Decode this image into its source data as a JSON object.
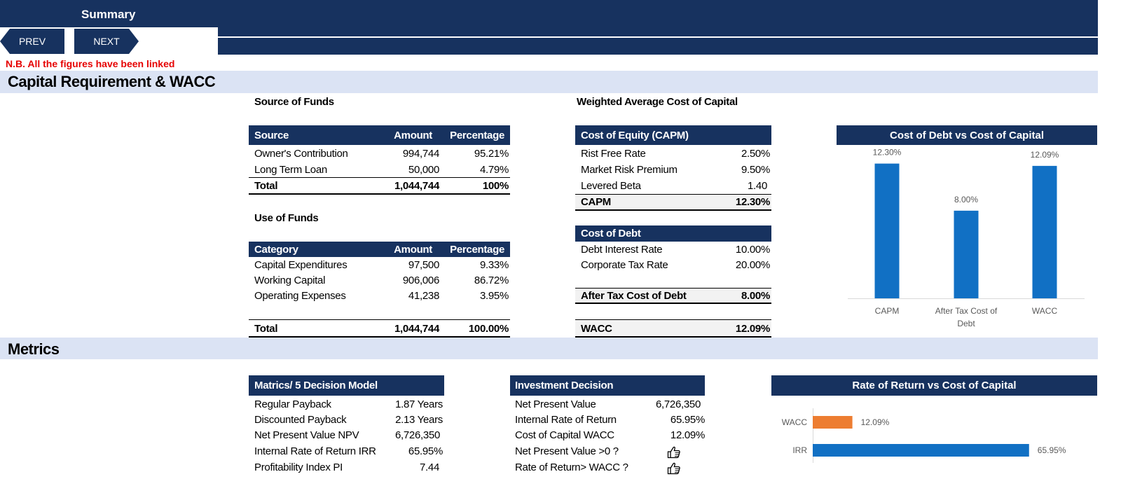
{
  "header": {
    "title": "Summary",
    "prev_label": "PREV",
    "next_label": "NEXT"
  },
  "note": "N.B. All the figures have been linked",
  "sections": {
    "capital": "Capital Requirement & WACC",
    "metrics": "Metrics"
  },
  "source_of_funds": {
    "title": "Source of Funds",
    "headers": [
      "Source",
      "Amount",
      "Percentage"
    ],
    "rows": [
      [
        "Owner's Contribution",
        "994,744",
        "95.21%"
      ],
      [
        "Long Term Loan",
        "50,000",
        "4.79%"
      ]
    ],
    "total": [
      "Total",
      "1,044,744",
      "100%"
    ]
  },
  "use_of_funds": {
    "title": "Use of Funds",
    "headers": [
      "Category",
      "Amount",
      "Percentage"
    ],
    "rows": [
      [
        "Capital Expenditures",
        "97,500",
        "9.33%"
      ],
      [
        "Working Capital",
        "906,006",
        "86.72%"
      ],
      [
        "Operating Expenses",
        "41,238",
        "3.95%"
      ]
    ],
    "total": [
      "Total",
      "1,044,744",
      "100.00%"
    ]
  },
  "wacc": {
    "title": "Weighted Average Cost of Capital",
    "equity_header": "Cost of Equity (CAPM)",
    "equity_rows": [
      [
        "Rist Free Rate",
        "2.50%"
      ],
      [
        "Market Risk Premium",
        "9.50%"
      ],
      [
        "Levered Beta",
        "1.40"
      ]
    ],
    "capm": [
      "CAPM",
      "12.30%"
    ],
    "debt_header": "Cost of Debt",
    "debt_rows": [
      [
        "Debt Interest Rate",
        "10.00%"
      ],
      [
        "Corporate Tax Rate",
        "20.00%"
      ]
    ],
    "after_tax": [
      "After Tax Cost of Debt",
      "8.00%"
    ],
    "wacc_row": [
      "WACC",
      "12.09%"
    ]
  },
  "metrics_model": {
    "header": "Matrics/ 5 Decision Model",
    "rows": [
      [
        "Regular Payback",
        "1.87 Years"
      ],
      [
        "Discounted Payback",
        "2.13 Years"
      ],
      [
        "Net Present Value NPV",
        "6,726,350"
      ],
      [
        "Internal Rate of Return IRR",
        "65.95%"
      ],
      [
        "Profitability Index PI",
        "7.44"
      ]
    ]
  },
  "investment_decision": {
    "header": "Investment Decision",
    "rows": [
      [
        "Net Present Value",
        "6,726,350"
      ],
      [
        "Internal Rate of Return",
        "65.95%"
      ],
      [
        "Cost of Capital WACC",
        "12.09%"
      ]
    ],
    "checks": [
      "Net Present Value >0 ?",
      "Rate of Return> WACC ?"
    ],
    "check_icon": "thumbs-up-icon"
  },
  "chart_data": [
    {
      "type": "bar",
      "title": "Cost of Debt vs Cost of Capital",
      "categories": [
        "CAPM",
        "After Tax Cost of Debt",
        "WACC"
      ],
      "category_lines": [
        [
          "CAPM"
        ],
        [
          "After Tax Cost of",
          "Debt"
        ],
        [
          "WACC"
        ]
      ],
      "values": [
        12.3,
        8.0,
        12.09
      ],
      "data_labels": [
        "12.30%",
        "8.00%",
        "12.09%"
      ],
      "ylim": [
        0,
        14
      ],
      "grid": false,
      "color": "#1170c4"
    },
    {
      "type": "bar",
      "orientation": "horizontal",
      "title": "Rate of Return vs Cost of Capital",
      "categories": [
        "WACC",
        "IRR"
      ],
      "values": [
        12.09,
        65.95
      ],
      "data_labels": [
        "12.09%",
        "65.95%"
      ],
      "xlim": [
        0,
        70
      ],
      "grid": false,
      "colors": [
        "#ed7d31",
        "#1170c4"
      ]
    }
  ]
}
